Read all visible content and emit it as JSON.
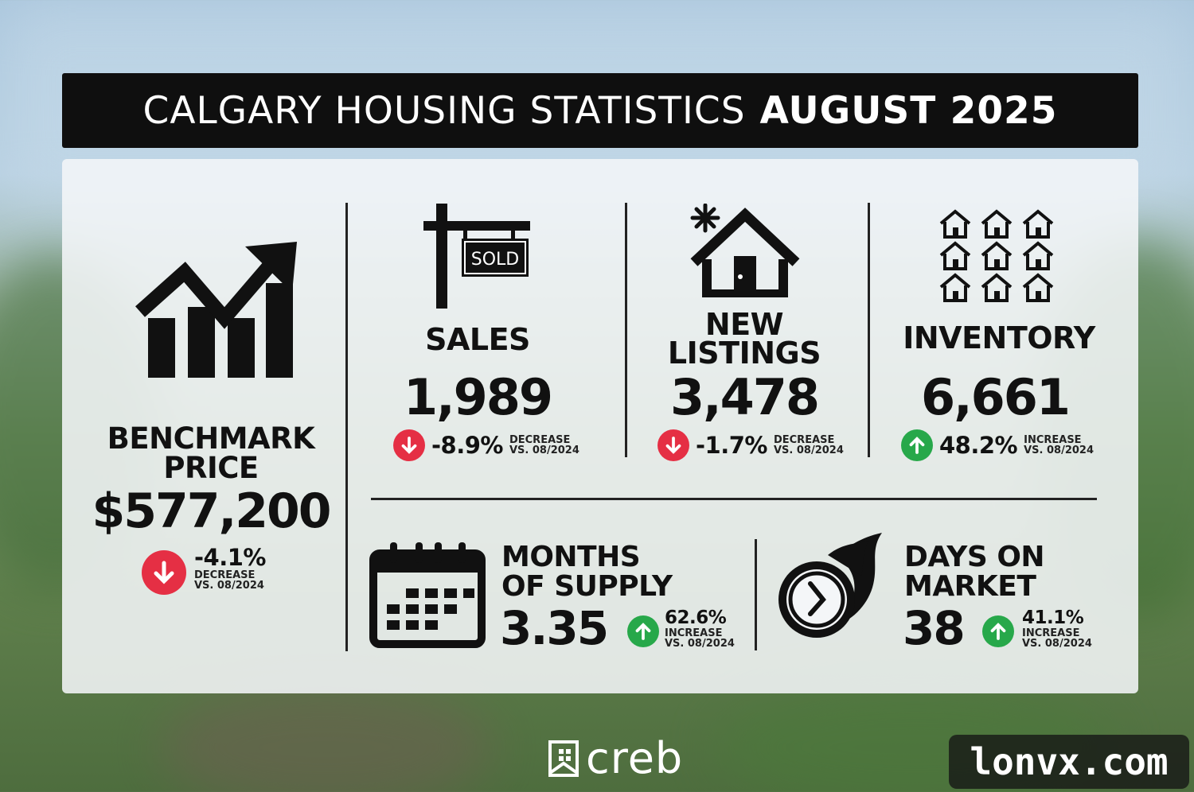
{
  "header": {
    "title_prefix": "CALGARY HOUSING STATISTICS",
    "title_month": "AUGUST 2025"
  },
  "benchmark": {
    "label_line1": "BENCHMARK",
    "label_line2": "PRICE",
    "value": "$577,200",
    "change": "-4.1%",
    "direction": "DECREASE",
    "vs": "VS. 08/2024",
    "icon": "trending-up-chart-icon"
  },
  "sales": {
    "label": "SALES",
    "sign_text": "SOLD",
    "value": "1,989",
    "change": "-8.9%",
    "direction": "DECREASE",
    "vs": "VS. 08/2024",
    "icon": "sold-sign-icon"
  },
  "new_listings": {
    "label_line1": "NEW",
    "label_line2": "LISTINGS",
    "value": "3,478",
    "change": "-1.7%",
    "direction": "DECREASE",
    "vs": "VS. 08/2024",
    "icon": "new-house-icon"
  },
  "inventory": {
    "label": "INVENTORY",
    "value": "6,661",
    "change": "48.2%",
    "direction": "INCREASE",
    "vs": "VS. 08/2024",
    "icon": "houses-grid-icon"
  },
  "months_of_supply": {
    "label_line1": "MONTHS",
    "label_line2": "OF SUPPLY",
    "value": "3.35",
    "change": "62.6%",
    "direction": "INCREASE",
    "vs": "VS. 08/2024",
    "icon": "calendar-icon"
  },
  "days_on_market": {
    "label_line1": "DAYS ON",
    "label_line2": "MARKET",
    "value": "38",
    "change": "41.1%",
    "direction": "INCREASE",
    "vs": "VS. 08/2024",
    "icon": "fast-clock-icon"
  },
  "footer": {
    "logo_text": "creb",
    "watermark": "lonvx.com"
  },
  "colors": {
    "decrease": "#e52f44",
    "increase": "#27a84a",
    "title_bg": "#0f0f0f"
  }
}
